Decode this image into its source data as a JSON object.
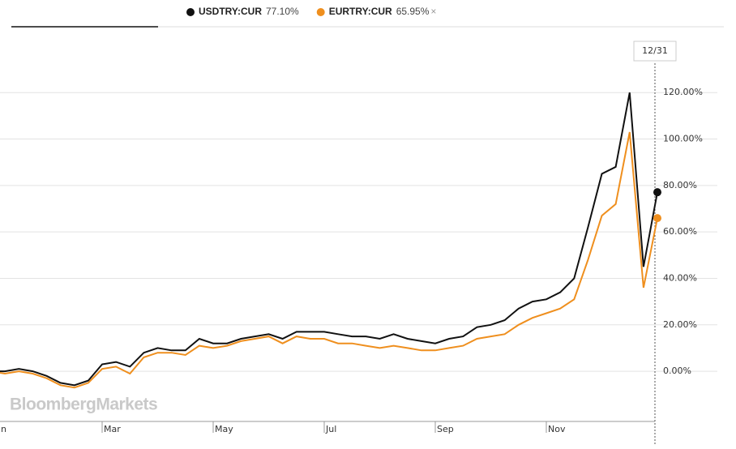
{
  "chart_data": {
    "type": "line",
    "crosshair_label": "12/31",
    "watermark": "BloombergMarkets",
    "close_icon": "×",
    "categories": [
      "Jan",
      null,
      null,
      null,
      null,
      null,
      null,
      null,
      "Mar",
      null,
      null,
      null,
      null,
      null,
      null,
      null,
      "May",
      null,
      null,
      null,
      null,
      null,
      null,
      null,
      "Jul",
      null,
      null,
      null,
      null,
      null,
      null,
      null,
      "Sep",
      null,
      null,
      null,
      null,
      null,
      null,
      null,
      "Nov",
      null,
      null,
      null,
      null,
      null,
      null,
      null,
      null
    ],
    "series": [
      {
        "name": "USDTRY:CUR",
        "legend_value": "77.10%",
        "color": "#111111",
        "values": [
          0,
          0,
          1,
          0,
          -2,
          -5,
          -6,
          -4,
          3,
          4,
          2,
          8,
          10,
          9,
          9,
          14,
          12,
          12,
          14,
          15,
          16,
          14,
          17,
          17,
          17,
          16,
          15,
          15,
          14,
          16,
          14,
          13,
          12,
          14,
          15,
          19,
          20,
          22,
          27,
          30,
          31,
          34,
          40,
          62,
          85,
          88,
          120,
          45,
          77.1
        ]
      },
      {
        "name": "EURTRY:CUR",
        "legend_value": "65.95%",
        "color": "#ef8f1e",
        "values": [
          0,
          -1,
          0,
          -1,
          -3,
          -6,
          -7,
          -5,
          1,
          2,
          -1,
          6,
          8,
          8,
          7,
          11,
          10,
          11,
          13,
          14,
          15,
          12,
          15,
          14,
          14,
          12,
          12,
          11,
          10,
          11,
          10,
          9,
          9,
          10,
          11,
          14,
          15,
          16,
          20,
          23,
          25,
          27,
          31,
          48,
          67,
          72,
          103,
          36,
          65.95
        ]
      }
    ],
    "ylim": [
      -21.6,
      148
    ],
    "yticks": [
      {
        "value": 0,
        "label": "0.00%"
      },
      {
        "value": 20,
        "label": "20.00%"
      },
      {
        "value": 40,
        "label": "40.00%"
      },
      {
        "value": 60,
        "label": "60.00%"
      },
      {
        "value": 80,
        "label": "80.00%"
      },
      {
        "value": 100,
        "label": "100.00%"
      },
      {
        "value": 120,
        "label": "120.00%"
      }
    ],
    "grid": true
  }
}
